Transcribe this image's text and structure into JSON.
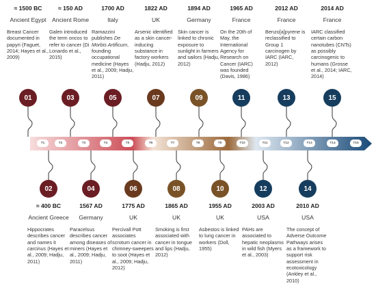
{
  "timeline": {
    "top": [
      {
        "number": "01",
        "date": "≈ 1500 BC",
        "place": "Ancient Egypt",
        "desc": [
          "Breast Cancer documented in papyri (Faguet, 2014; Hayes et al., 2009)"
        ],
        "color": "#6b1d24"
      },
      {
        "number": "03",
        "date": "≈ 150 AD",
        "place": "Ancient Rome",
        "desc": [
          "Galen introduced the term ",
          "oncos",
          " to refer to cancer (Di Lonardo et al., 2015)"
        ],
        "color": "#6b1d24"
      },
      {
        "number": "05",
        "date": "1700 AD",
        "place": "Italy",
        "desc": [
          "Ramazzini publishes ",
          "De Morbis Artificum",
          ", founding occupational medicine (Hayes et al., 2009; Hadju, 2011)"
        ],
        "color": "#6b1d24"
      },
      {
        "number": "07",
        "date": "1822 AD",
        "place": "UK",
        "desc": [
          "Arsenic identified as a skin cancer-inducing substance in factory workers (Hadju, 2012)"
        ],
        "color": "#6a3a1f"
      },
      {
        "number": "09",
        "date": "1894 AD",
        "place": "Germany",
        "desc": [
          "Skin cancer is linked to chronic exposure to sunlight in farmers and sailors (Hadju, 2012)"
        ],
        "color": "#7a5228"
      },
      {
        "number": "11",
        "date": "1965 AD",
        "place": "France",
        "desc": [
          "On the 20th of May, the International Agency for Research on Cancer (IARC) was founded (Davis, 1986)"
        ],
        "color": "#163d5e"
      },
      {
        "number": "13",
        "date": "2012 AD",
        "place": "France",
        "desc": [
          "Benzo[a]pyrene is reclassified to Group 1 carcinogen by IARC (IARC, 2012)"
        ],
        "color": "#163d5e"
      },
      {
        "number": "15",
        "date": "2014 AD",
        "place": "France",
        "desc": [
          "IARC classified certain carbon nanotubes (CNTs) as possibly carcinogenic to humans (Grosse et al., 2014; IARC, 2014)"
        ],
        "color": "#163d5e"
      }
    ],
    "bottom": [
      {
        "number": "02",
        "date": "≈ 400 BC",
        "place": "Ancient Greece",
        "desc": [
          "Hippocrates describes cancer and names it ",
          "carcinus",
          " (Hayes et al., 2009; Hadju, 2011)"
        ],
        "color": "#6b1d24"
      },
      {
        "number": "04",
        "date": "1567 AD",
        "place": "Germany",
        "desc": [
          "Paracelsus describes cancer among diseases of miners (Hayes et al., 2009; Hadju, 2011)"
        ],
        "color": "#6b1d24"
      },
      {
        "number": "06",
        "date": "1775 AD",
        "place": "UK",
        "desc": [
          "Percivall Pott associates scrotum cancer in chimney-sweepers to soot (Hayes et al., 2009; Hadju, 2012)"
        ],
        "color": "#6a3a1f"
      },
      {
        "number": "08",
        "date": "1865 AD",
        "place": "UK",
        "desc": [
          "Smoking is first associated with cancer in tongue and lips (Hadju, 2012)"
        ],
        "color": "#7a5228"
      },
      {
        "number": "10",
        "date": "1955 AD",
        "place": "UK",
        "desc": [
          "Asbestos is linked to lung cancer in workers (Doll, 1955)"
        ],
        "color": "#7a5228"
      },
      {
        "number": "12",
        "date": "2003 AD",
        "place": "USA",
        "desc": [
          "PAHs are associated to hepatic neoplasms in wild fish (Myers et al., 2003)"
        ],
        "color": "#163d5e"
      },
      {
        "number": "14",
        "date": "2010 AD",
        "place": "USA",
        "desc": [
          "The concept of Adverse Outcome Pathways arises as a framework to support risk assessment in ecotoxicology (Ankley et al., 2010)"
        ],
        "color": "#163d5e"
      }
    ],
    "markers": [
      "T1",
      "T2",
      "T3",
      "T4",
      "T5",
      "T6",
      "T7",
      "T8",
      "T9",
      "T10",
      "T11",
      "T12",
      "T13",
      "T14",
      "T15"
    ]
  }
}
